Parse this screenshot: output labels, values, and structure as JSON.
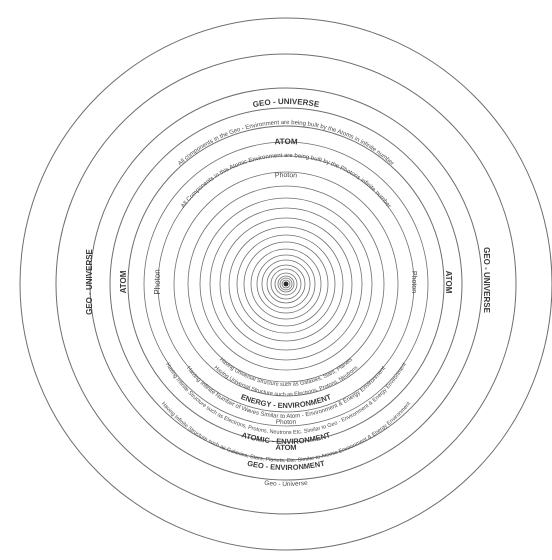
{
  "diagram": {
    "labels": {
      "geo_universe_top": "GEO - UNIVERSE",
      "geo_universe_top_desc": "All components in the Geo - Environment are being built by the Atoms in infinite number",
      "atom_top": "ATOM",
      "atom_top_desc": "All Components in this Atomic Environment are being built by the Photons infinite number",
      "photon_top": "Photon",
      "geo_universe_left": "GEO - UNIVERSE",
      "atom_left": "ATOM",
      "photon_left": "Photon",
      "geo_universe_right": "GEO - UNIVERSE",
      "atom_right": "ATOM",
      "photon_right": "Photon",
      "inner_desc_1": "Having Universal Structure such as Galaxies, Stars, Planets",
      "inner_desc_2": "Having Universal Structure such as Electrons, Protons, Neutrons",
      "energy_env": "ENERGY - ENVIRONMENT",
      "energy_env_desc": "Having Infinite Number of Waves Similar to Atom - Environment & Energy Environment",
      "photon_bottom": "Photon",
      "atomic_env_desc": "Having Infinite Structure such as Electrons, Protons, Neutrons Etc. Similar to Geo - Environment & Energy Environment",
      "atomic_env": "ATOMIC - ENVIRONMENT",
      "atom_bottom": "ATOM",
      "geo_env_desc": "Having Infinite Structure such as Galaxies, Stars, Planets, Etc. Similar to Atomic Environment & Energy Environment",
      "geo_env": "GEO - ENVIRONMENT",
      "geo_universe_bottom": "Geo - Universe"
    }
  }
}
